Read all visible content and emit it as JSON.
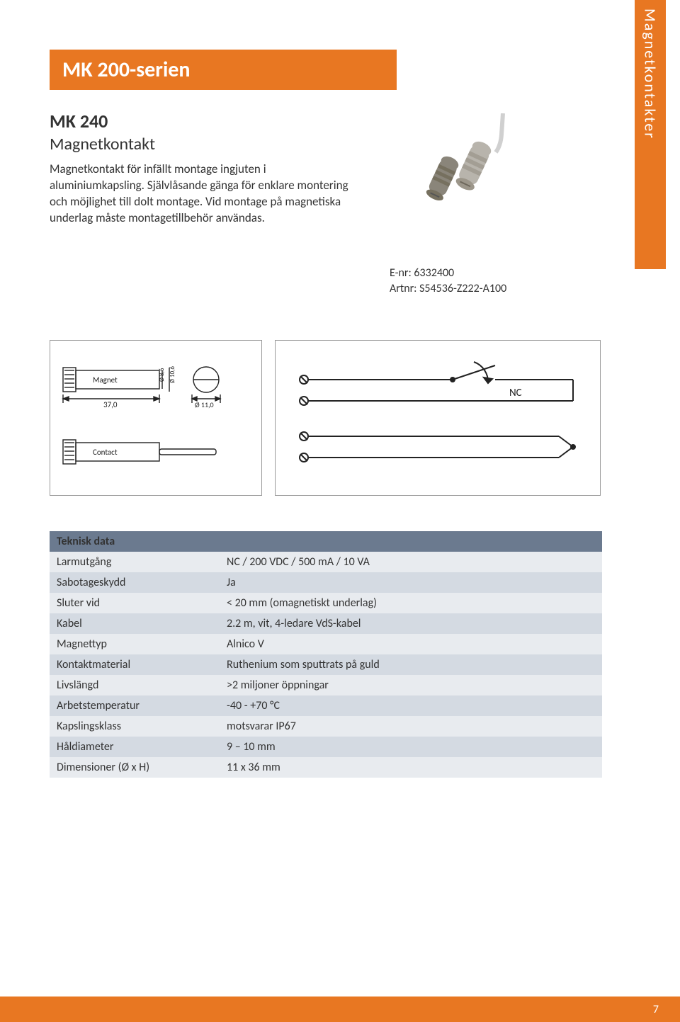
{
  "colors": {
    "accent": "#e87722",
    "header_bar": "#6b7a8f",
    "row_light": "#e8ebef",
    "row_dark": "#d4dae2",
    "text": "#333333",
    "white": "#ffffff",
    "diagram_stroke": "#222222"
  },
  "side_tab": "Magnetkontakter",
  "series_title": "MK 200-serien",
  "product": {
    "name": "MK 240",
    "subtitle": "Magnetkontakt",
    "description": "Magnetkontakt för infällt montage ingjuten i aluminiumkapsling. Självlåsande gänga för enklare montering och möjlighet till dolt montage. Vid montage på magnetiska underlag måste montagetillbehör användas."
  },
  "refs": {
    "enr_label": "E-nr: ",
    "enr": "6332400",
    "artnr_label": "Artnr: ",
    "artnr": "S54536-Z222-A100"
  },
  "diagram_left": {
    "magnet_label": "Magnet",
    "contact_label": "Contact",
    "length": "37,0",
    "inner_dia": "Ø 8,6",
    "outer_dia": "Ø 10,6",
    "circle_dia": "Ø 11,0"
  },
  "diagram_right": {
    "nc_label": "NC"
  },
  "table": {
    "header": "Teknisk data",
    "rows": [
      {
        "label": "Larmutgång",
        "value": "NC / 200 VDC / 500 mA / 10 VA"
      },
      {
        "label": "Sabotageskydd",
        "value": "Ja"
      },
      {
        "label": "Sluter vid",
        "value": "< 20 mm (omagnetiskt underlag)"
      },
      {
        "label": "Kabel",
        "value": "2.2 m, vit, 4-ledare VdS-kabel"
      },
      {
        "label": "Magnettyp",
        "value": "Alnico V"
      },
      {
        "label": "Kontaktmaterial",
        "value": "Ruthenium som sputtrats på guld"
      },
      {
        "label": "Livslängd",
        "value": ">2 miljoner öppningar"
      },
      {
        "label": "Arbetstemperatur",
        "value": "-40 - +70 °C"
      },
      {
        "label": "Kapslingsklass",
        "value": "motsvarar IP67"
      },
      {
        "label": "Håldiameter",
        "value": "9 – 10 mm"
      },
      {
        "label": "Dimensioner (Ø x H)",
        "value": "11 x 36 mm"
      }
    ]
  },
  "page_number": "7"
}
